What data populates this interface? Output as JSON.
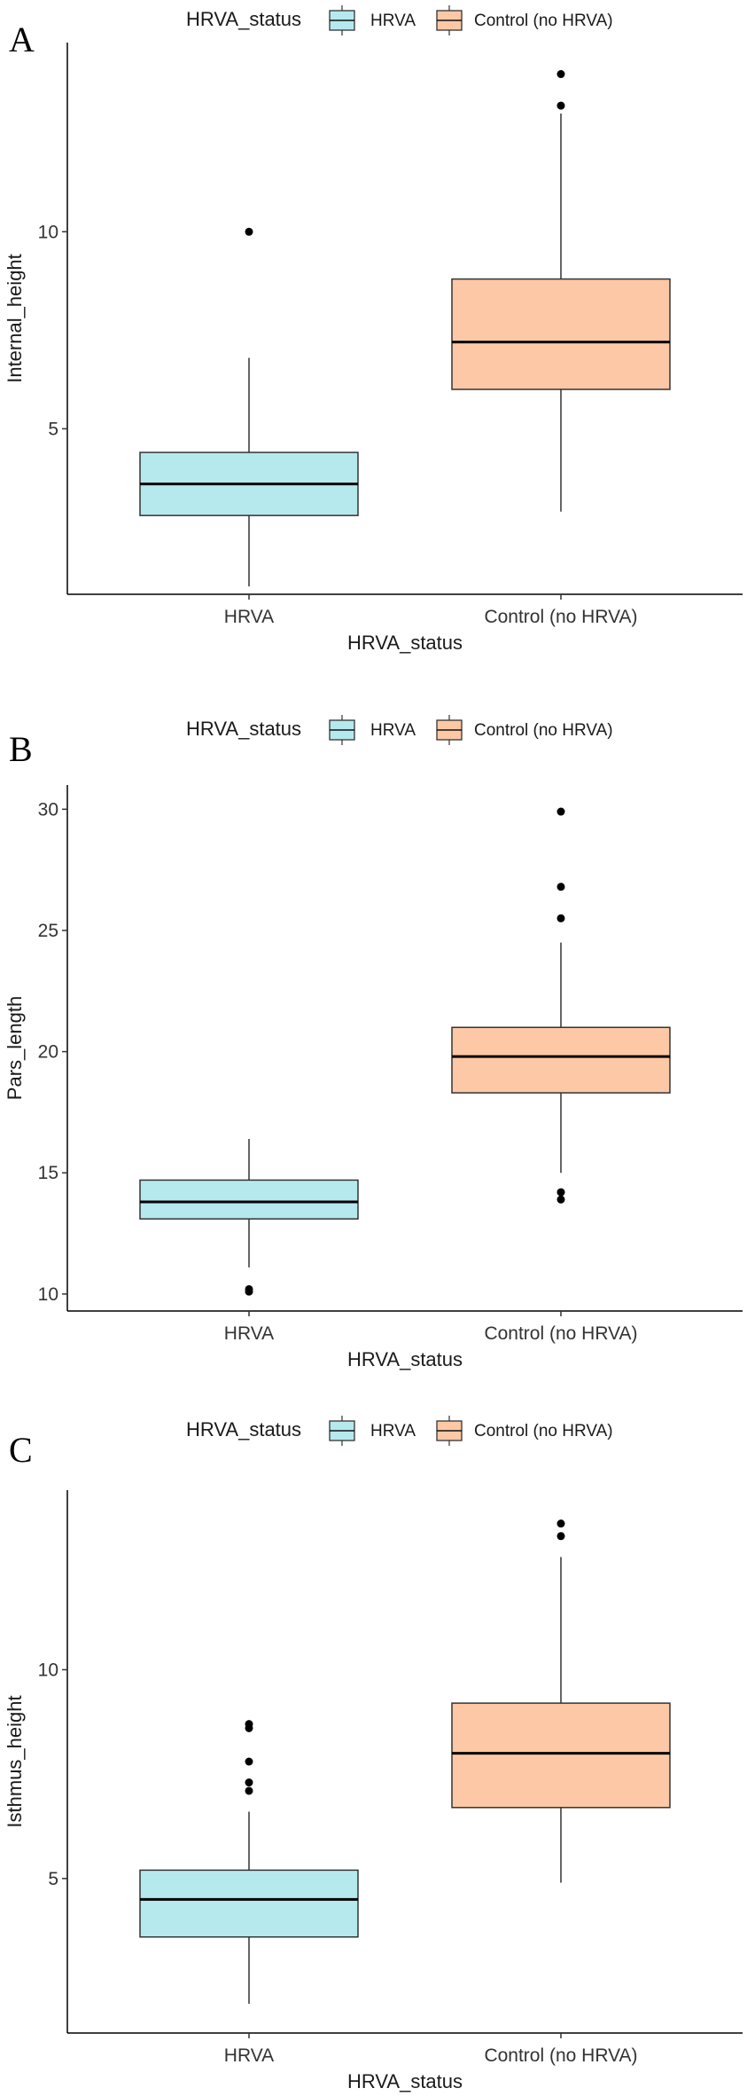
{
  "chart_data": [
    {
      "type": "box",
      "panel_label": "A",
      "legend_title": "HRVA_status",
      "legend": [
        "HRVA",
        "Control (no HRVA)"
      ],
      "colors": [
        "#b5e9ee",
        "#fdc8a5"
      ],
      "xlabel": "HRVA_status",
      "ylabel": "Internal_height",
      "categories": [
        "HRVA",
        "Control (no HRVA)"
      ],
      "ylim": [
        0.8,
        14.8
      ],
      "yticks": [
        5,
        10
      ],
      "boxes": [
        {
          "category": "HRVA",
          "whisker_low": 1.0,
          "q1": 2.8,
          "median": 3.6,
          "q3": 4.4,
          "whisker_high": 6.8,
          "outliers": [
            10.0
          ]
        },
        {
          "category": "Control (no HRVA)",
          "whisker_low": 2.9,
          "q1": 6.0,
          "median": 7.2,
          "q3": 8.8,
          "whisker_high": 13.0,
          "outliers": [
            13.2,
            14.0
          ]
        }
      ]
    },
    {
      "type": "box",
      "panel_label": "B",
      "legend_title": "HRVA_status",
      "legend": [
        "HRVA",
        "Control (no HRVA)"
      ],
      "colors": [
        "#b5e9ee",
        "#fdc8a5"
      ],
      "xlabel": "HRVA_status",
      "ylabel": "Pars_length",
      "categories": [
        "HRVA",
        "Control (no HRVA)"
      ],
      "ylim": [
        9.3,
        31.0
      ],
      "yticks": [
        10,
        15,
        20,
        25,
        30
      ],
      "boxes": [
        {
          "category": "HRVA",
          "whisker_low": 11.1,
          "q1": 13.1,
          "median": 13.8,
          "q3": 14.7,
          "whisker_high": 16.4,
          "outliers": [
            10.1,
            10.2
          ]
        },
        {
          "category": "Control (no HRVA)",
          "whisker_low": 15.0,
          "q1": 18.3,
          "median": 19.8,
          "q3": 21.0,
          "whisker_high": 24.5,
          "outliers": [
            13.9,
            14.2,
            25.5,
            26.8,
            29.9
          ]
        }
      ]
    },
    {
      "type": "box",
      "panel_label": "C",
      "legend_title": "HRVA_status",
      "legend": [
        "HRVA",
        "Control (no HRVA)"
      ],
      "colors": [
        "#b5e9ee",
        "#fdc8a5"
      ],
      "xlabel": "HRVA_status",
      "ylabel": "Isthmus_height",
      "categories": [
        "HRVA",
        "Control (no HRVA)"
      ],
      "ylim": [
        1.3,
        14.3
      ],
      "yticks": [
        5,
        10
      ],
      "boxes": [
        {
          "category": "HRVA",
          "whisker_low": 2.0,
          "q1": 3.6,
          "median": 4.5,
          "q3": 5.2,
          "whisker_high": 6.6,
          "outliers": [
            7.1,
            7.3,
            7.8,
            8.6,
            8.7
          ]
        },
        {
          "category": "Control (no HRVA)",
          "whisker_low": 4.9,
          "q1": 6.7,
          "median": 8.0,
          "q3": 9.2,
          "whisker_high": 12.7,
          "outliers": [
            13.2,
            13.5
          ]
        }
      ]
    }
  ]
}
